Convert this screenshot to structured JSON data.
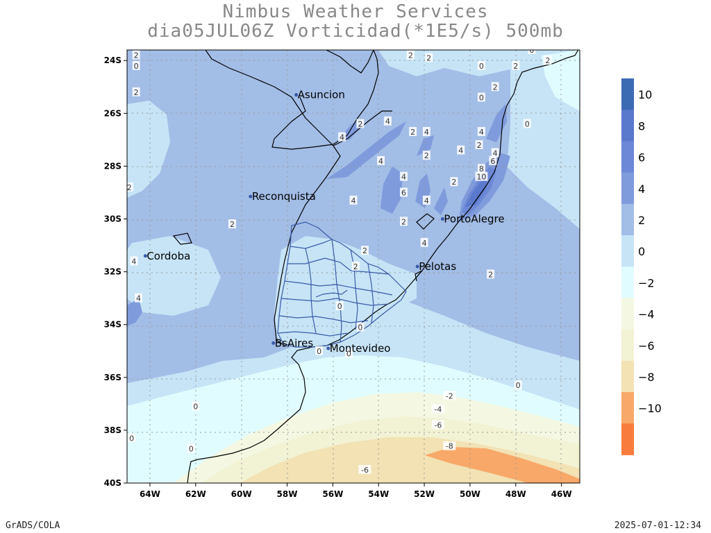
{
  "title": {
    "line1": "Nimbus Weather Services",
    "line2": "dia05JUL06Z Vorticidad(*1E5/s) 500mb"
  },
  "footer": {
    "left": "GrADS/COLA",
    "right": "2025-07-01-12:34"
  },
  "map": {
    "lat_ticks": [
      "24S",
      "26S",
      "28S",
      "30S",
      "32S",
      "34S",
      "36S",
      "38S",
      "40S"
    ],
    "lon_ticks": [
      "64W",
      "62W",
      "60W",
      "58W",
      "56W",
      "54W",
      "52W",
      "50W",
      "48W",
      "46W"
    ],
    "lon_range": [
      -65,
      -45.2
    ],
    "lat_range": [
      -40,
      -23.6
    ],
    "grid": true,
    "cities": [
      {
        "name": "Asuncion",
        "lon": -57.6,
        "lat": -25.3
      },
      {
        "name": "Reconquista",
        "lon": -59.6,
        "lat": -29.15
      },
      {
        "name": "Cordoba",
        "lon": -64.2,
        "lat": -31.4
      },
      {
        "name": "PortoAlegre",
        "lon": -51.2,
        "lat": -30.0
      },
      {
        "name": "Pelotas",
        "lon": -52.3,
        "lat": -31.8
      },
      {
        "name": "BsAires",
        "lon": -58.6,
        "lat": -34.7
      },
      {
        "name": "Montevideo",
        "lon": -56.2,
        "lat": -34.9
      }
    ],
    "contour_labels": [
      {
        "text": "2",
        "lon": -64.6,
        "lat": -23.8
      },
      {
        "text": "0",
        "lon": -64.6,
        "lat": -24.2
      },
      {
        "text": "2",
        "lon": -64.6,
        "lat": -25.2
      },
      {
        "text": "2",
        "lon": -52.6,
        "lat": -23.8
      },
      {
        "text": "2",
        "lon": -51.8,
        "lat": -23.9
      },
      {
        "text": "0",
        "lon": -47.3,
        "lat": -23.6
      },
      {
        "text": "0",
        "lon": -49.5,
        "lat": -24.2
      },
      {
        "text": "2",
        "lon": -48.0,
        "lat": -24.2
      },
      {
        "text": "2",
        "lon": -46.6,
        "lat": -24.0
      },
      {
        "text": "2",
        "lon": -48.9,
        "lat": -25.0
      },
      {
        "text": "0",
        "lon": -49.5,
        "lat": -25.4
      },
      {
        "text": "0",
        "lon": -47.5,
        "lat": -26.4
      },
      {
        "text": "2",
        "lon": -54.8,
        "lat": -26.4
      },
      {
        "text": "4",
        "lon": -53.6,
        "lat": -26.3
      },
      {
        "text": "2",
        "lon": -52.5,
        "lat": -26.7
      },
      {
        "text": "4",
        "lon": -51.9,
        "lat": -26.7
      },
      {
        "text": "4",
        "lon": -55.6,
        "lat": -26.9
      },
      {
        "text": "4",
        "lon": -50.4,
        "lat": -27.4
      },
      {
        "text": "2",
        "lon": -49.6,
        "lat": -27.2
      },
      {
        "text": "4",
        "lon": -49.5,
        "lat": -26.7
      },
      {
        "text": "2",
        "lon": -51.9,
        "lat": -27.6
      },
      {
        "text": "4",
        "lon": -48.9,
        "lat": -27.5
      },
      {
        "text": "4",
        "lon": -53.9,
        "lat": -27.8
      },
      {
        "text": "6",
        "lon": -49.0,
        "lat": -27.8
      },
      {
        "text": "8",
        "lon": -49.5,
        "lat": -28.1
      },
      {
        "text": "10",
        "lon": -49.5,
        "lat": -28.4
      },
      {
        "text": "4",
        "lon": -52.9,
        "lat": -28.4
      },
      {
        "text": "2",
        "lon": -50.7,
        "lat": -28.6
      },
      {
        "text": "6",
        "lon": -52.9,
        "lat": -29.0
      },
      {
        "text": "4",
        "lon": -51.9,
        "lat": -29.3
      },
      {
        "text": "4",
        "lon": -55.1,
        "lat": -29.3
      },
      {
        "text": "2",
        "lon": -52.9,
        "lat": -30.1
      },
      {
        "text": "2",
        "lon": -60.4,
        "lat": -30.2
      },
      {
        "text": "4",
        "lon": -52.0,
        "lat": -30.9
      },
      {
        "text": "2",
        "lon": -54.6,
        "lat": -31.2
      },
      {
        "text": "4",
        "lon": -64.7,
        "lat": -31.6
      },
      {
        "text": "2",
        "lon": -55.0,
        "lat": -31.8
      },
      {
        "text": "2",
        "lon": -49.1,
        "lat": -32.1
      },
      {
        "text": "4",
        "lon": -64.5,
        "lat": -33.0
      },
      {
        "text": "0",
        "lon": -55.7,
        "lat": -33.3
      },
      {
        "text": "0",
        "lon": -54.8,
        "lat": -34.1
      },
      {
        "text": "0",
        "lon": -56.6,
        "lat": -35.0
      },
      {
        "text": "0",
        "lon": -55.3,
        "lat": -35.1
      },
      {
        "text": "0",
        "lon": -47.9,
        "lat": -36.3
      },
      {
        "text": "-2",
        "lon": -50.9,
        "lat": -36.7
      },
      {
        "text": "-4",
        "lon": -51.4,
        "lat": -37.2
      },
      {
        "text": "-6",
        "lon": -51.4,
        "lat": -37.8
      },
      {
        "text": "-8",
        "lon": -50.9,
        "lat": -38.6
      },
      {
        "text": "-6",
        "lon": -54.6,
        "lat": -39.5
      },
      {
        "text": "0",
        "lon": -62.0,
        "lat": -37.1
      },
      {
        "text": "0",
        "lon": -64.8,
        "lat": -38.3
      },
      {
        "text": "0",
        "lon": -62.2,
        "lat": -38.7
      },
      {
        "text": "2",
        "lon": -64.9,
        "lat": -28.8
      }
    ]
  },
  "colorbar": {
    "labels": [
      "10",
      "8",
      "6",
      "4",
      "2",
      "0",
      "−2",
      "−4",
      "−6",
      "−8",
      "−10"
    ],
    "colors": [
      "#3c6bb4",
      "#5a78cc",
      "#6c88d6",
      "#7f9bdc",
      "#a2bde6",
      "#c6e4f6",
      "#e0fcfe",
      "#f4f8e2",
      "#f2f2d4",
      "#f2e2b4",
      "#f8a868",
      "#f87c3c"
    ]
  },
  "palette": {
    "v_neg8": "#f8a868",
    "v_neg6": "#f2e2b4",
    "v_neg4": "#f2f2d4",
    "v_neg2": "#f4f8e2",
    "v_0": "#e0fcfe",
    "v_2": "#c6e4f6",
    "v_4": "#a2bde6",
    "v_6": "#7f9bdc",
    "v_8": "#6c88d6",
    "v_10": "#5a78cc"
  }
}
